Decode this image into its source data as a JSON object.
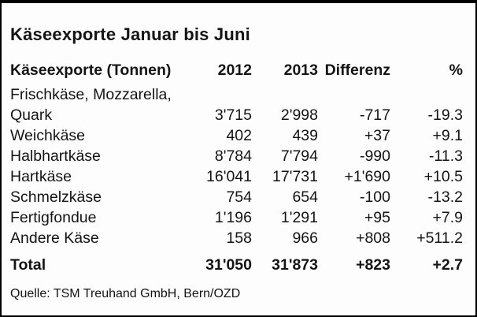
{
  "title": "Käseexporte Januar bis Juni",
  "source": "Quelle: TSM Treuhand GmbH, Bern/OZD",
  "colors": {
    "text": "#141414",
    "background": "#fdfdfd",
    "frame_border": "#000000"
  },
  "chart_data": {
    "type": "table",
    "title": "Käseexporte Januar bis Juni",
    "unit_note": "Tonnen",
    "columns": [
      "Käseexporte (Tonnen)",
      "2012",
      "2013",
      "Differenz",
      "%"
    ],
    "rows": [
      [
        "Frischkäse, Mozzarella, Quark",
        "3'715",
        "2'998",
        "-717",
        "-19.3"
      ],
      [
        "Weichkäse",
        "402",
        "439",
        "+37",
        "+9.1"
      ],
      [
        "Halbhartkäse",
        "8'784",
        "7'794",
        "-990",
        "-11.3"
      ],
      [
        "Hartkäse",
        "16'041",
        "17'731",
        "+1'690",
        "+10.5"
      ],
      [
        "Schmelzkäse",
        "754",
        "654",
        "-100",
        "-13.2"
      ],
      [
        "Fertigfondue",
        "1'196",
        "1'291",
        "+95",
        "+7.9"
      ],
      [
        "Andere Käse",
        "158",
        "966",
        "+808",
        "+511.2"
      ]
    ],
    "total_row": [
      "Total",
      "31'050",
      "31'873",
      "+823",
      "+2.7"
    ],
    "source": "Quelle: TSM Treuhand GmbH, Bern/OZD",
    "layout": {
      "numeric_columns_alignment": "right",
      "label_column_alignment": "left",
      "gridlines": "none"
    }
  }
}
